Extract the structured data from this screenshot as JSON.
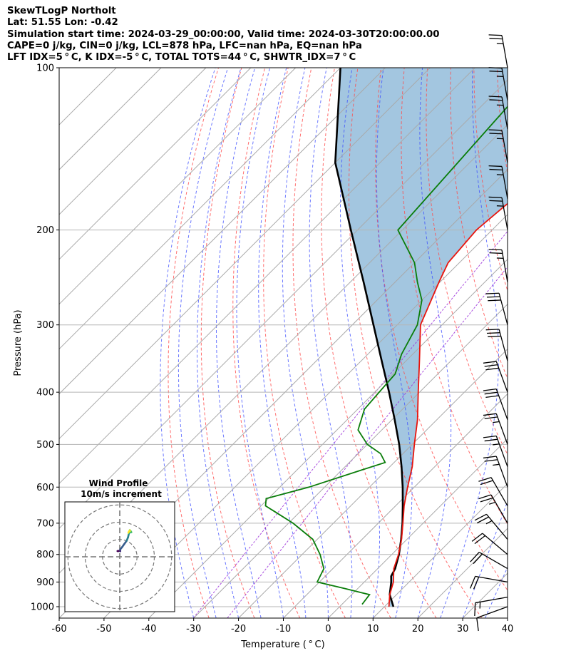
{
  "header": {
    "lines": [
      "SkewTLogP Northolt",
      "Lat: 51.55   Lon: -0.42",
      "Simulation start time: 2024-03-29_00:00:00, Valid time: 2024-03-30T20:00:00.00",
      "CAPE=0 j/kg, CIN=0 j/kg, LCL=878 hPa, LFC=nan hPa, EQ=nan hPa",
      "LFT IDX=5$^\\circ$C, K IDX=-5$^\\circ$C, TOTAL TOTS=44$^\\circ$C, SHWTR_IDX=7$^\\circ$C"
    ],
    "display": [
      "SkewTLogP Northolt",
      "Lat: 51.55   Lon: -0.42",
      "Simulation start time: 2024-03-29_00:00:00, Valid time: 2024-03-30T20:00:00.00",
      "CAPE=0 j/kg, CIN=0 j/kg, LCL=878 hPa, LFC=nan hPa, EQ=nan hPa",
      "LFT IDX=5 ° C, K IDX=-5 ° C, TOTAL TOTS=44 ° C, SHWTR_IDX=7 ° C"
    ]
  },
  "chart_data": {
    "type": "line",
    "subtype": "skew-t log-p",
    "xlabel": "Temperature ($^\\circ$C)",
    "xlabel_display": "Temperature ( ° C)",
    "ylabel": "Pressure (hPa)",
    "xlim": [
      -60,
      40
    ],
    "ylim": [
      1050,
      100
    ],
    "y_scale": "log",
    "x_ticks": [
      -60,
      -50,
      -40,
      -30,
      -20,
      -10,
      0,
      10,
      20,
      30,
      40
    ],
    "y_ticks": [
      1000,
      900,
      800,
      700,
      600,
      500,
      400,
      300,
      200,
      100
    ],
    "grid": true,
    "series": [
      {
        "role": "temperature",
        "color": "#e8150d",
        "p": [
          1000,
          950,
          900,
          850,
          800,
          750,
          700,
          650,
          600,
          550,
          500,
          450,
          400,
          350,
          300,
          250,
          230,
          200,
          180,
          160,
          150,
          140,
          130,
          120,
          110,
          100
        ],
        "t": [
          11,
          8.5,
          6.5,
          3.6,
          1.5,
          -1.2,
          -4.5,
          -8.1,
          -11.5,
          -15,
          -19.5,
          -24.3,
          -30.3,
          -37,
          -44.8,
          -50.2,
          -52.5,
          -53.5,
          -52.5,
          -51,
          -50.5,
          -50,
          -50.3,
          -50.5,
          -51,
          -51.5
        ]
      },
      {
        "role": "dewpoint",
        "color": "#0a7d0a",
        "p": [
          990,
          950,
          925,
          900,
          850,
          800,
          750,
          700,
          650,
          630,
          600,
          560,
          540,
          520,
          500,
          470,
          430,
          400,
          370,
          340,
          300,
          270,
          250,
          230,
          200,
          100
        ],
        "td": [
          4.5,
          4,
          -3,
          -10.5,
          -12,
          -16,
          -21,
          -29,
          -39,
          -40.5,
          -33.5,
          -26,
          -22,
          -25,
          -30,
          -35.3,
          -38.5,
          -39,
          -39.5,
          -42.5,
          -45.5,
          -50,
          -55,
          -60,
          -71,
          -75
        ]
      },
      {
        "role": "parcel",
        "color": "#000000",
        "p": [
          1000,
          950,
          900,
          878,
          850,
          800,
          750,
          700,
          650,
          600,
          550,
          500,
          450,
          400,
          350,
          300,
          250,
          200,
          150,
          100
        ],
        "t": [
          12,
          8.5,
          6,
          4.7,
          3.9,
          1.6,
          -1.3,
          -4.6,
          -8.4,
          -12.6,
          -17.4,
          -22.9,
          -29.4,
          -36.8,
          -45.4,
          -55.3,
          -67,
          -81.5,
          -100,
          -120
        ]
      }
    ],
    "cape_shading": "blue, between temperature and parcel",
    "wind_barbs": {
      "p": [
        1000,
        960,
        900,
        850,
        800,
        750,
        700,
        650,
        600,
        550,
        500,
        450,
        400,
        350,
        300,
        250,
        200,
        175,
        150,
        130,
        115,
        100
      ],
      "speed_kt": [
        10,
        15,
        20,
        20,
        20,
        25,
        25,
        20,
        25,
        25,
        25,
        30,
        30,
        30,
        30,
        25,
        25,
        25,
        25,
        25,
        25,
        25
      ],
      "direction_deg": [
        250,
        260,
        280,
        300,
        310,
        320,
        330,
        330,
        340,
        340,
        340,
        340,
        340,
        345,
        345,
        350,
        350,
        350,
        350,
        350,
        350,
        350
      ]
    },
    "inset": {
      "title": "Wind Profile",
      "subtitle": "10m/s increment",
      "type": "hodograph",
      "rings_ms": [
        10,
        20,
        30
      ],
      "u_ms": [
        -0.8,
        -1.3,
        -0.6,
        0.2,
        0.3,
        0.3,
        1.3,
        2.5,
        4.0,
        4.8,
        5.3,
        5.9,
        6.5,
        6.7,
        6.4,
        6.1,
        5.8,
        5.6,
        5.2,
        5.0
      ],
      "v_ms": [
        3.3,
        3.3,
        3.4,
        3.5,
        3.2,
        4.3,
        5.5,
        7.2,
        9.3,
        11.3,
        13.4,
        14.2,
        14.5,
        14.2,
        14.7,
        14.9,
        15.4,
        15.0,
        14.4,
        13.9
      ]
    }
  }
}
